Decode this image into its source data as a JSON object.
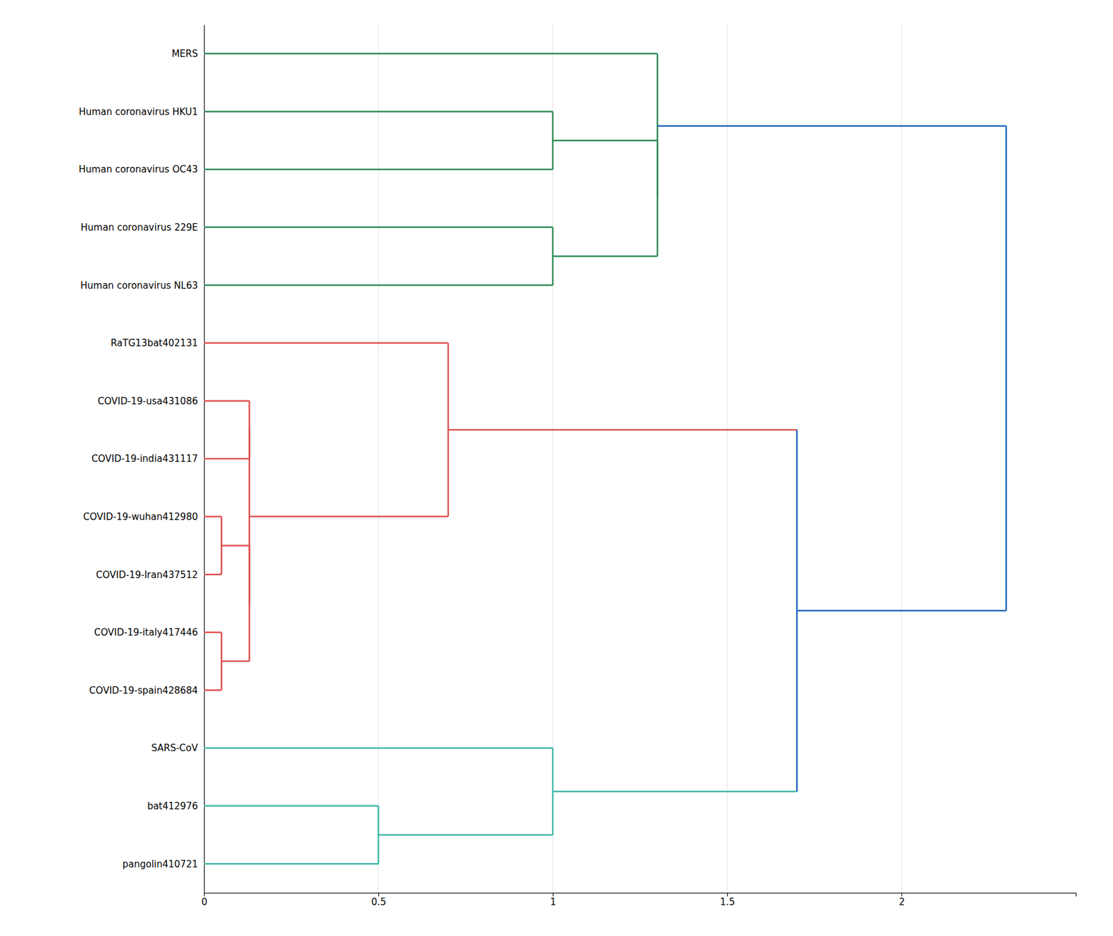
{
  "chart_data": {
    "type": "dendrogram",
    "categories": [
      "MERS",
      "Human coronavirus HKU1",
      "Human coronavirus OC43",
      "Human coronavirus 229E",
      "Human coronavirus NL63",
      "RaTG13bat402131",
      "COVID-19-usa431086",
      "COVID-19-india431117",
      "COVID-19-wuhan412980",
      "COVID-19-Iran437512",
      "COVID-19-italy417446",
      "COVID-19-spain428684",
      "SARS-CoV",
      "bat412976",
      "pangolin410721"
    ],
    "xlim": [
      0.0,
      2.5
    ],
    "xticks": [
      0,
      0.5,
      1,
      1.5,
      2
    ],
    "grid": true,
    "tree": {
      "height": 2.3,
      "color": "#2266bb",
      "children": [
        {
          "height": 1.3,
          "colors": [
            "#2e8b57",
            "#2266bb"
          ],
          "children": [
            {
              "leaf": 0,
              "height": 0,
              "color": "#2e8b57"
            },
            {
              "height": 1.3,
              "colors": [
                "#2e8b57",
                "#2e8b57"
              ],
              "children": [
                {
                  "height": 1.0,
                  "colors": [
                    "#2e8b57",
                    "#2e8b57"
                  ],
                  "children": [
                    {
                      "leaf": 1,
                      "height": 0,
                      "color": "#2e8b57"
                    },
                    {
                      "leaf": 2,
                      "height": 0,
                      "color": "#2e8b57"
                    }
                  ]
                },
                {
                  "height": 1.0,
                  "colors": [
                    "#2e8b57",
                    "#2e8b57"
                  ],
                  "children": [
                    {
                      "leaf": 3,
                      "height": 0,
                      "color": "#2e8b57"
                    },
                    {
                      "leaf": 4,
                      "height": 0,
                      "color": "#2e8b57"
                    }
                  ]
                }
              ]
            }
          ]
        },
        {
          "height": 1.7,
          "colors": [
            "#2266bb",
            "#2266bb"
          ],
          "children": [
            {
              "height": 0.7,
              "colors": [
                "#e05050",
                "#e05050"
              ],
              "children": [
                {
                  "leaf": 5,
                  "height": 0,
                  "color": "#e05050"
                },
                {
                  "height": 0.13,
                  "colors": [
                    "#e05050",
                    "#e05050"
                  ],
                  "children": [
                    {
                      "height": 0.13,
                      "colors": [
                        "#e05050",
                        "#e05050"
                      ],
                      "children": [
                        {
                          "leaf": 6,
                          "height": 0,
                          "color": "#e05050"
                        },
                        {
                          "leaf": 7,
                          "height": 0,
                          "color": "#e05050"
                        }
                      ]
                    },
                    {
                      "height": 0.13,
                      "colors": [
                        "#e05050",
                        "#e05050"
                      ],
                      "children": [
                        {
                          "height": 0.05,
                          "colors": [
                            "#e05050",
                            "#e05050"
                          ],
                          "children": [
                            {
                              "leaf": 8,
                              "height": 0,
                              "color": "#e05050"
                            },
                            {
                              "leaf": 9,
                              "height": 0,
                              "color": "#e05050"
                            }
                          ]
                        },
                        {
                          "height": 0.05,
                          "colors": [
                            "#e05050",
                            "#e05050"
                          ],
                          "children": [
                            {
                              "leaf": 10,
                              "height": 0,
                              "color": "#e05050"
                            },
                            {
                              "leaf": 11,
                              "height": 0,
                              "color": "#e05050"
                            }
                          ]
                        }
                      ]
                    }
                  ]
                }
              ]
            },
            {
              "height": 1.0,
              "colors": [
                "#40b8a8",
                "#40b8a8"
              ],
              "children": [
                {
                  "leaf": 12,
                  "height": 0,
                  "color": "#40b8a8"
                },
                {
                  "height": 0.5,
                  "colors": [
                    "#40b8a8",
                    "#40b8a8"
                  ],
                  "children": [
                    {
                      "leaf": 13,
                      "height": 0,
                      "color": "#40b8a8"
                    },
                    {
                      "leaf": 14,
                      "height": 0,
                      "color": "#40b8a8"
                    }
                  ]
                }
              ]
            }
          ]
        }
      ]
    }
  }
}
